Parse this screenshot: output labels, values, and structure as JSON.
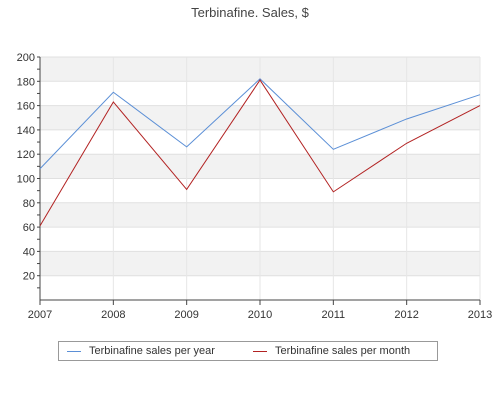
{
  "chart_data": {
    "type": "line",
    "title": "Terbinafine. Sales, $",
    "categories": [
      "2007",
      "2008",
      "2009",
      "2010",
      "2011",
      "2012",
      "2013"
    ],
    "ylim": [
      0,
      200
    ],
    "yticks": [
      "20",
      "40",
      "60",
      "80",
      "100",
      "120",
      "140",
      "160",
      "180",
      "200"
    ],
    "grid": true,
    "legend_position": "bottom",
    "series": [
      {
        "name": "Terbinafine sales per year",
        "color": "#5b8fd6",
        "values": [
          108,
          171,
          126,
          182,
          124,
          149,
          169
        ]
      },
      {
        "name": "Terbinafine sales per month",
        "color": "#b22222",
        "values": [
          61,
          163,
          91,
          181,
          89,
          129,
          160
        ]
      }
    ]
  }
}
